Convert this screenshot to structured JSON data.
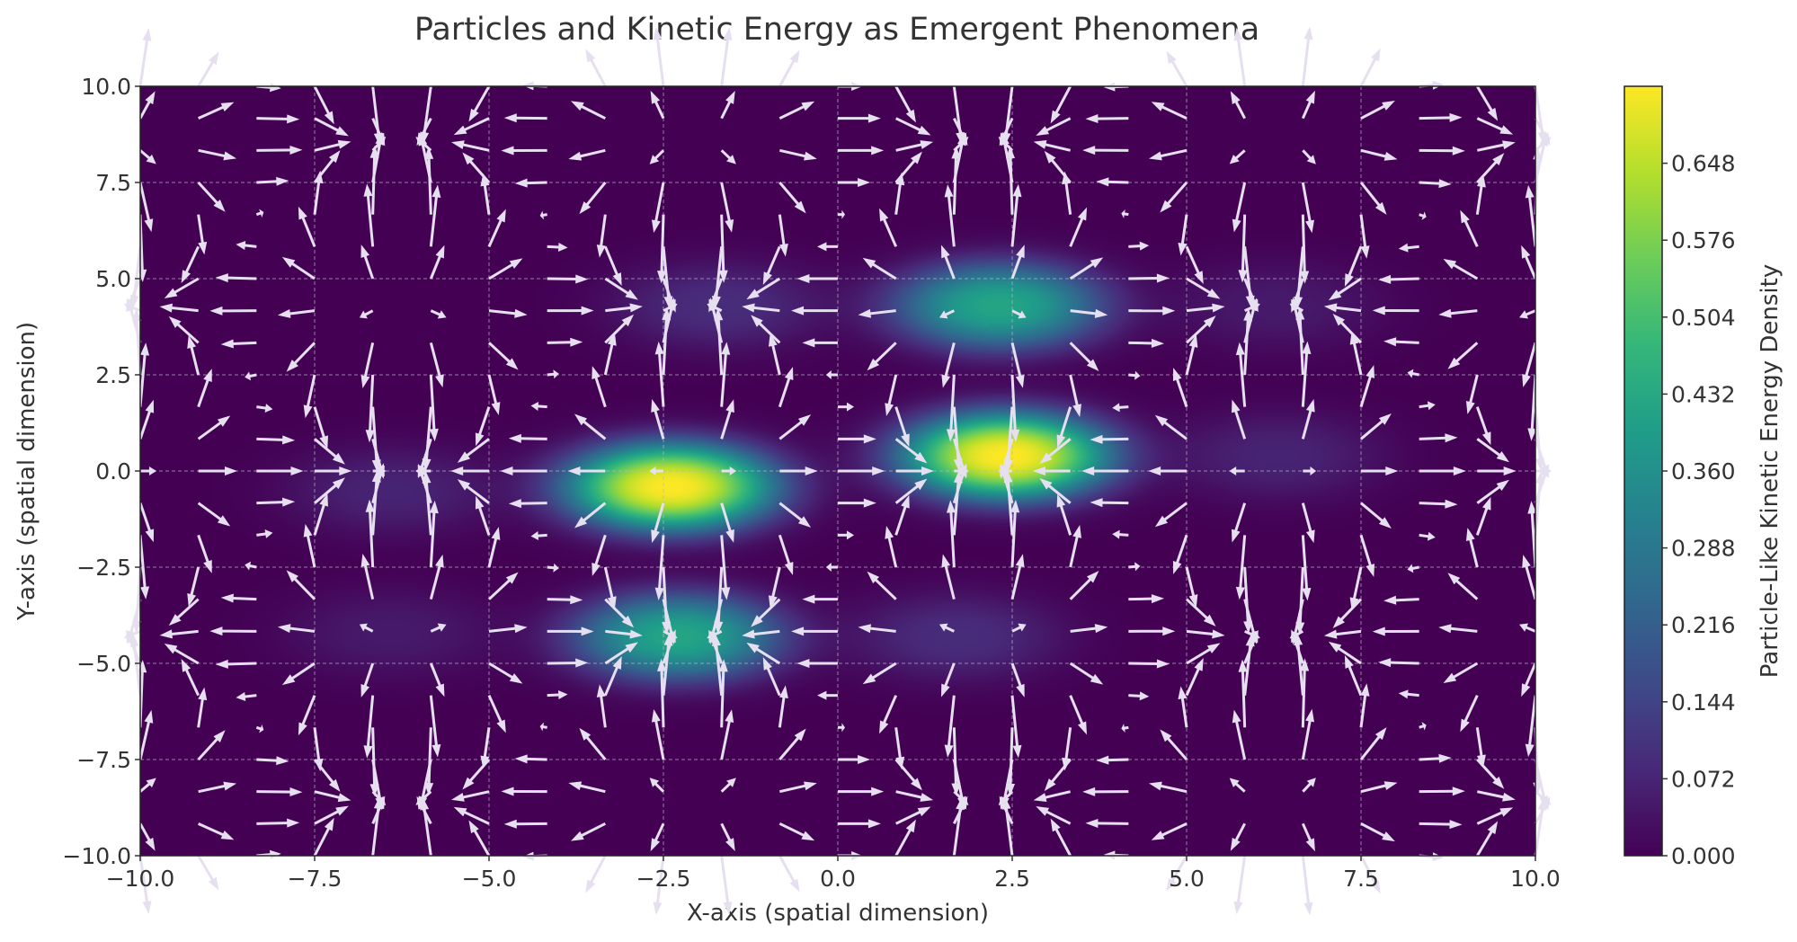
{
  "chart_data": {
    "type": "heatmap",
    "overlay": "quiver",
    "title": "Particles and Kinetic Energy as Emergent Phenomena",
    "xlabel": "X-axis (spatial dimension)",
    "ylabel": "Y-axis (spatial dimension)",
    "xlim": [
      -10,
      10
    ],
    "ylim": [
      -10,
      10
    ],
    "xticks": [
      "−10.0",
      "−7.5",
      "−5.0",
      "−2.5",
      "0.0",
      "2.5",
      "5.0",
      "7.5",
      "10.0"
    ],
    "yticks": [
      "−10.0",
      "−7.5",
      "−5.0",
      "−2.5",
      "0.0",
      "2.5",
      "5.0",
      "7.5",
      "10.0"
    ],
    "grid": true,
    "colormap": "viridis",
    "colorbar": {
      "label": "Particle-Like Kinetic Energy Density",
      "range": [
        0,
        0.72
      ],
      "ticks": [
        "0.000",
        "0.072",
        "0.144",
        "0.216",
        "0.288",
        "0.360",
        "0.432",
        "0.504",
        "0.576",
        "0.648"
      ]
    },
    "density_peaks": [
      {
        "x": -2.4,
        "y": -0.4,
        "value": 0.72
      },
      {
        "x": 2.4,
        "y": 0.4,
        "value": 0.72
      },
      {
        "x": -2.3,
        "y": -4.3,
        "value": 0.42
      },
      {
        "x": 2.3,
        "y": 4.3,
        "value": 0.42
      },
      {
        "x": -1.7,
        "y": 4.3,
        "value": 0.09
      },
      {
        "x": 1.7,
        "y": -4.3,
        "value": 0.09
      },
      {
        "x": -6.4,
        "y": -0.5,
        "value": 0.07
      },
      {
        "x": 6.3,
        "y": 0.4,
        "value": 0.07
      },
      {
        "x": -6.4,
        "y": -4.2,
        "value": 0.05
      },
      {
        "x": 6.3,
        "y": 4.3,
        "value": 0.05
      }
    ],
    "quiver_grid": {
      "count": 25,
      "range": [
        -10,
        10
      ]
    },
    "arrow_color": "#e6dff0"
  }
}
